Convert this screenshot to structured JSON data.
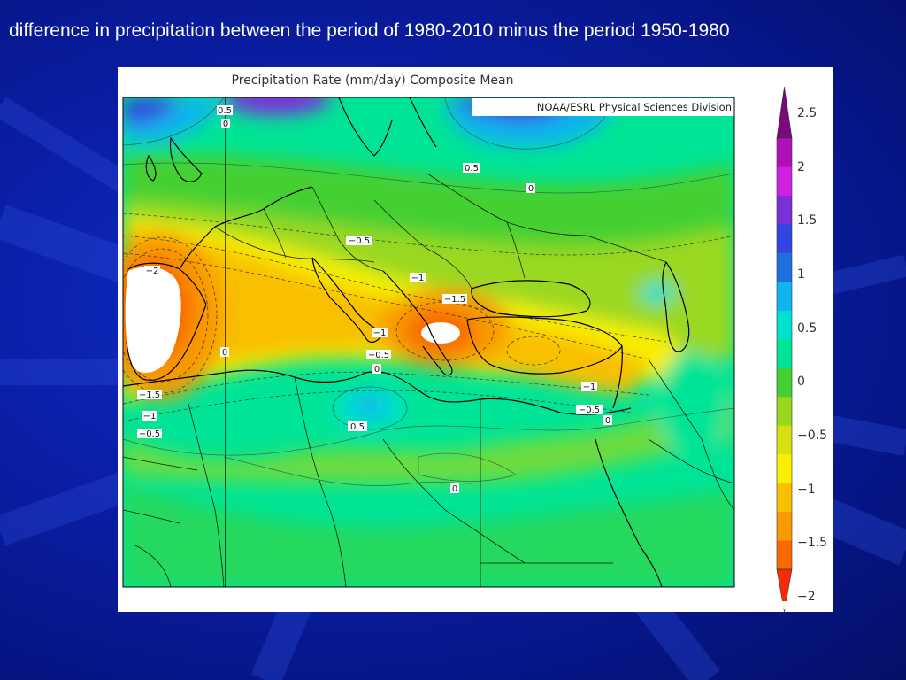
{
  "slide": {
    "title": "difference in precipitation between the period of 1980-2010 minus the period 1950-1980"
  },
  "map": {
    "title": "Precipitation Rate (mm/day) Composite Mean",
    "credit": "NOAA/ESRL Physical Sciences Division",
    "contour_labels": [
      "0.5",
      "0",
      "0.5",
      "0",
      "−0.5",
      "−2",
      "−1",
      "−1.5",
      "−1",
      "−0.5",
      "0",
      "0",
      "−1.5",
      "−1",
      "−0.5",
      "0.5",
      "−1",
      "−0.5",
      "0",
      "0"
    ]
  },
  "colorbar": {
    "labels": [
      "2.5",
      "2",
      "1.5",
      "1",
      "0.5",
      "0",
      "−0.5",
      "−1",
      "−1.5",
      "−2"
    ],
    "colors": [
      "#7a0a7a",
      "#b010b8",
      "#d020e0",
      "#7a30d8",
      "#3046e0",
      "#1e70dd",
      "#10b4ee",
      "#00e0d0",
      "#00e496",
      "#44d030",
      "#9ad820",
      "#d8e010",
      "#f8f000",
      "#f8c000",
      "#f89a00",
      "#f86a00",
      "#f82c00"
    ]
  },
  "palette": {
    "background": "#0a1fa8",
    "title_text": "#ffffff"
  }
}
